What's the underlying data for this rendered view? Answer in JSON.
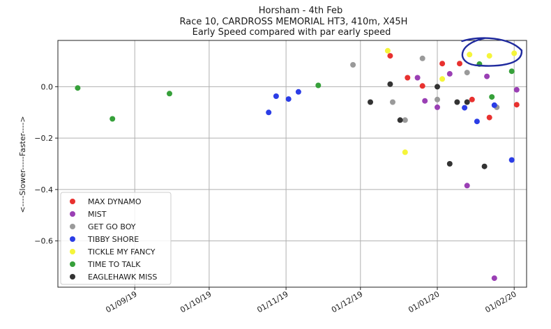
{
  "chart_data": {
    "type": "scatter",
    "title_lines": [
      "Horsham  - 4th Feb",
      "Race 10, CARDROSS MEMORIAL HT3, 410m, X45H",
      "Early Speed compared with par early speed"
    ],
    "xlabel": "",
    "ylabel": "<----Slower-----Faster---->",
    "xlim": [
      "2019-08-01",
      "2020-02-06"
    ],
    "ylim": [
      -0.78,
      0.18
    ],
    "x_ticks": [
      {
        "date": "2019-09-01",
        "label": "01/09/19"
      },
      {
        "date": "2019-10-01",
        "label": "01/10/19"
      },
      {
        "date": "2019-11-01",
        "label": "01/11/19"
      },
      {
        "date": "2019-12-01",
        "label": "01/12/19"
      },
      {
        "date": "2020-01-01",
        "label": "01/01/20"
      },
      {
        "date": "2020-02-01",
        "label": "01/02/20"
      }
    ],
    "y_ticks": [
      {
        "value": 0.0,
        "label": "0.0"
      },
      {
        "value": -0.2,
        "label": "−0.2"
      },
      {
        "value": -0.4,
        "label": "−0.4"
      },
      {
        "value": -0.6,
        "label": "−0.6"
      }
    ],
    "grid": true,
    "legend_position": "lower-left",
    "annotation": {
      "shape": "hand-drawn ellipse",
      "color": "#1f2a9e",
      "around_date_range": [
        "2020-01-11",
        "2020-02-04"
      ],
      "around_value_range": [
        0.1,
        0.18
      ]
    },
    "series": [
      {
        "name": "MAX DYNAMO",
        "color": "#e8312f",
        "points": [
          {
            "x": "2019-12-13",
            "y": 0.12
          },
          {
            "x": "2019-12-20",
            "y": 0.035
          },
          {
            "x": "2019-12-26",
            "y": 0.003
          },
          {
            "x": "2020-01-03",
            "y": 0.09
          },
          {
            "x": "2020-01-10",
            "y": 0.09
          },
          {
            "x": "2020-01-15",
            "y": -0.05
          },
          {
            "x": "2020-01-22",
            "y": -0.12
          },
          {
            "x": "2020-02-02",
            "y": -0.07
          }
        ]
      },
      {
        "name": "MIST",
        "color": "#9a3fb4",
        "points": [
          {
            "x": "2019-12-24",
            "y": 0.035
          },
          {
            "x": "2019-12-27",
            "y": -0.055
          },
          {
            "x": "2020-01-01",
            "y": -0.08
          },
          {
            "x": "2020-01-06",
            "y": 0.05
          },
          {
            "x": "2020-01-13",
            "y": -0.385
          },
          {
            "x": "2020-01-21",
            "y": 0.04
          },
          {
            "x": "2020-01-24",
            "y": -0.745
          },
          {
            "x": "2020-02-02",
            "y": -0.012
          }
        ]
      },
      {
        "name": "GET GO BOY",
        "color": "#9a9a9a",
        "points": [
          {
            "x": "2019-11-28",
            "y": 0.085
          },
          {
            "x": "2019-12-14",
            "y": -0.06
          },
          {
            "x": "2019-12-19",
            "y": -0.13
          },
          {
            "x": "2019-12-26",
            "y": 0.11
          },
          {
            "x": "2020-01-01",
            "y": -0.05
          },
          {
            "x": "2020-01-13",
            "y": 0.055
          },
          {
            "x": "2020-01-25",
            "y": -0.08
          }
        ]
      },
      {
        "name": "TIBBY SHORE",
        "color": "#2b3de6",
        "points": [
          {
            "x": "2019-10-25",
            "y": -0.1
          },
          {
            "x": "2019-10-28",
            "y": -0.037
          },
          {
            "x": "2019-11-02",
            "y": -0.048
          },
          {
            "x": "2019-11-06",
            "y": -0.02
          },
          {
            "x": "2020-01-12",
            "y": -0.082
          },
          {
            "x": "2020-01-17",
            "y": -0.135
          },
          {
            "x": "2020-01-24",
            "y": -0.072
          },
          {
            "x": "2020-01-31",
            "y": -0.285
          }
        ]
      },
      {
        "name": "TICKLE MY FANCY",
        "color": "#f5f53a",
        "points": [
          {
            "x": "2019-12-12",
            "y": 0.14
          },
          {
            "x": "2019-12-19",
            "y": -0.255
          },
          {
            "x": "2020-01-03",
            "y": 0.03
          },
          {
            "x": "2020-01-14",
            "y": 0.125
          },
          {
            "x": "2020-01-22",
            "y": 0.12
          },
          {
            "x": "2020-02-01",
            "y": 0.13
          }
        ]
      },
      {
        "name": "TIME TO TALK",
        "color": "#36a03a",
        "points": [
          {
            "x": "2019-08-09",
            "y": -0.005
          },
          {
            "x": "2019-08-23",
            "y": -0.125
          },
          {
            "x": "2019-09-15",
            "y": -0.027
          },
          {
            "x": "2019-11-14",
            "y": 0.005
          },
          {
            "x": "2020-01-18",
            "y": 0.088
          },
          {
            "x": "2020-01-23",
            "y": -0.04
          },
          {
            "x": "2020-01-31",
            "y": 0.06
          }
        ]
      },
      {
        "name": "EAGLEHAWK MISS",
        "color": "#333333",
        "points": [
          {
            "x": "2019-12-05",
            "y": -0.06
          },
          {
            "x": "2019-12-13",
            "y": 0.01
          },
          {
            "x": "2019-12-17",
            "y": -0.13
          },
          {
            "x": "2020-01-01",
            "y": 0.0
          },
          {
            "x": "2020-01-06",
            "y": -0.3
          },
          {
            "x": "2020-01-09",
            "y": -0.06
          },
          {
            "x": "2020-01-13",
            "y": -0.06
          },
          {
            "x": "2020-01-20",
            "y": -0.31
          }
        ]
      }
    ]
  }
}
